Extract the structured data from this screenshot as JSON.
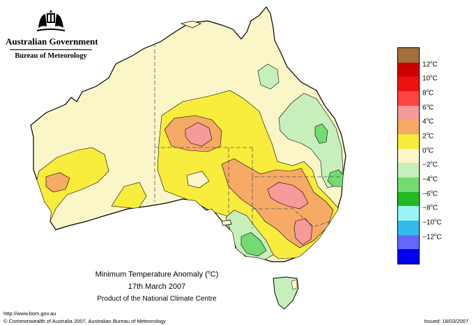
{
  "header": {
    "org_line1": "Australian Government",
    "org_line2": "Bureau of Meteorology"
  },
  "caption": {
    "title": "Minimum Temperature Anomaly (°C)",
    "title_main": "Minimum Temperature Anomaly (",
    "title_unit_sup": "o",
    "title_unit_rest": "C)",
    "date": "17th March 2007",
    "product": "Product of the National Climate Centre"
  },
  "legend": {
    "swatches": [
      {
        "color": "#a0703d",
        "label": ""
      },
      {
        "color": "#cc0000",
        "label": "12°C"
      },
      {
        "color": "#ee1111",
        "label": "10°C"
      },
      {
        "color": "#ff4444",
        "label": "8°C"
      },
      {
        "color": "#f69a9a",
        "label": "6°C"
      },
      {
        "color": "#f6aa66",
        "label": "4°C"
      },
      {
        "color": "#f8ec3c",
        "label": "2°C"
      },
      {
        "color": "#fbf6c8",
        "label": "0°C"
      },
      {
        "color": "#c6efbc",
        "label": "−2°C"
      },
      {
        "color": "#72dc72",
        "label": "−4°C"
      },
      {
        "color": "#22bb22",
        "label": "−6°C"
      },
      {
        "color": "#9af6f6",
        "label": "−8°C"
      },
      {
        "color": "#33bbee",
        "label": "−10°C"
      },
      {
        "color": "#6666ff",
        "label": "−12°C"
      },
      {
        "color": "#0000ee",
        "label": ""
      }
    ],
    "labels": [
      {
        "num": "12",
        "unit": "C"
      },
      {
        "num": "10",
        "unit": "C"
      },
      {
        "num": "8",
        "unit": "C"
      },
      {
        "num": "6",
        "unit": "C"
      },
      {
        "num": "4",
        "unit": "C"
      },
      {
        "num": "2",
        "unit": "C"
      },
      {
        "num": "0",
        "unit": "C"
      },
      {
        "num": "−2",
        "unit": "C"
      },
      {
        "num": "−4",
        "unit": "C"
      },
      {
        "num": "−6",
        "unit": "C"
      },
      {
        "num": "−8",
        "unit": "C"
      },
      {
        "num": "−10",
        "unit": "C"
      },
      {
        "num": "−12",
        "unit": "C"
      }
    ]
  },
  "footer": {
    "url": "http://www.bom.gov.au",
    "copyright": "© Commonwealth of Australia 2007, Australian Bureau of Meteorology",
    "issued": "Issued: 18/03/2007"
  }
}
